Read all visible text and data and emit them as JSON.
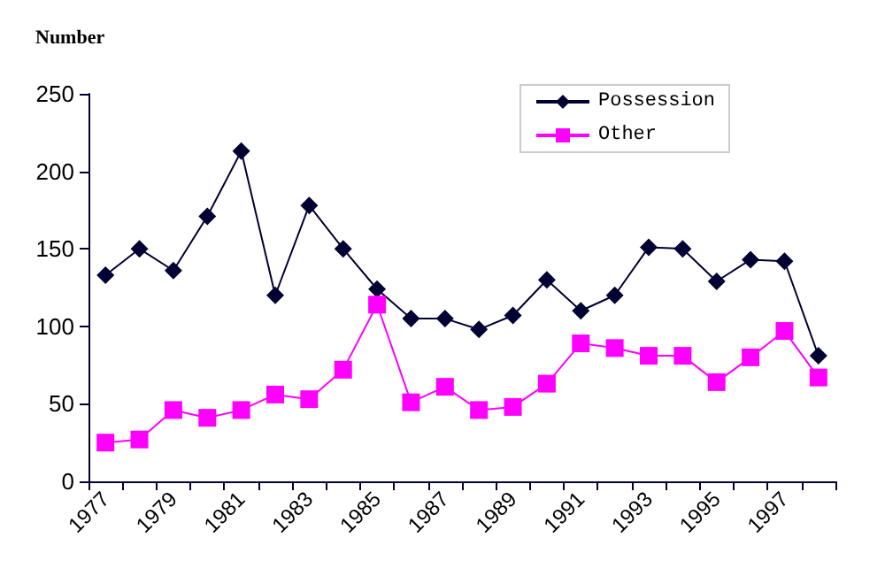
{
  "chart_data": {
    "type": "line",
    "ylabel": "Number",
    "categories": [
      "1977",
      null,
      "1979",
      null,
      "1981",
      null,
      "1983",
      null,
      "1985",
      null,
      "1987",
      null,
      "1989",
      null,
      "1991",
      null,
      "1993",
      null,
      "1995",
      null,
      "1997",
      null
    ],
    "series": [
      {
        "name": "Possession",
        "color": "#000033",
        "marker": "diamond",
        "values": [
          133,
          150,
          136,
          171,
          213,
          120,
          178,
          150,
          124,
          105,
          105,
          98,
          107,
          130,
          110,
          120,
          151,
          150,
          129,
          143,
          142,
          81
        ]
      },
      {
        "name": "Other",
        "color": "#ff00ff",
        "marker": "square",
        "values": [
          25,
          27,
          46,
          41,
          46,
          56,
          53,
          72,
          114,
          51,
          61,
          46,
          48,
          63,
          89,
          86,
          81,
          81,
          64,
          80,
          97,
          67
        ]
      }
    ],
    "ylim": [
      0,
      250
    ],
    "yticks": [
      0,
      50,
      100,
      150,
      200,
      250
    ],
    "grid": false,
    "legend": "top right",
    "line_style": "solid"
  }
}
